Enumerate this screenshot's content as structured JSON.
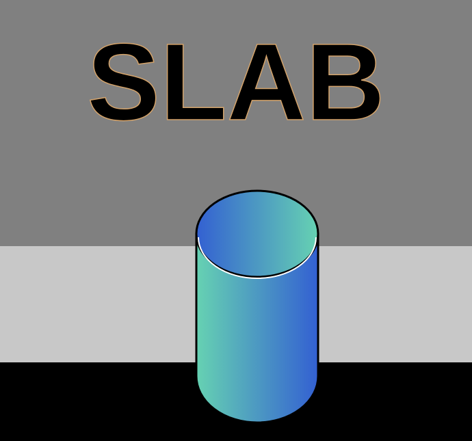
{
  "title": "SLAB",
  "colors": {
    "upper_band": "#808080",
    "middle_band": "#c8c8c8",
    "lower_band": "#000000",
    "title_fill": "#000000",
    "title_outline": "#d4a36a",
    "gradient_teal": "#66d2b2",
    "gradient_blue": "#3360d2",
    "cylinder_outline": "#000000",
    "rim_highlight": "#ffffff"
  }
}
